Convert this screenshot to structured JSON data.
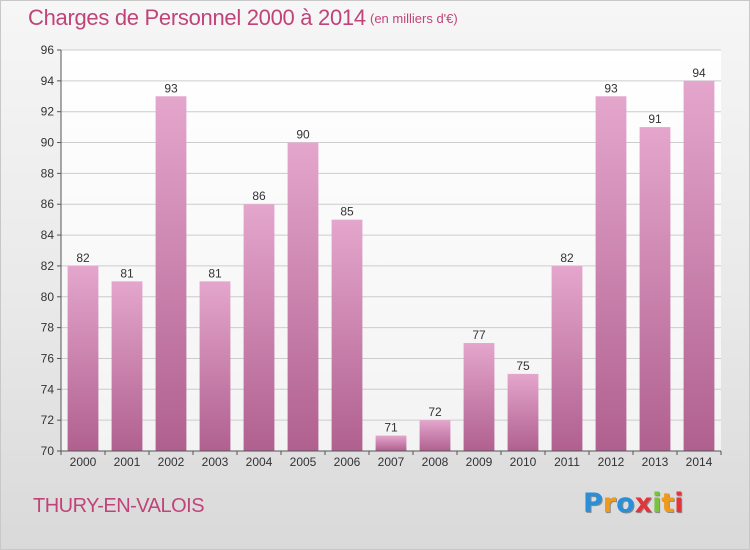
{
  "title": "Charges de Personnel 2000 à 2014",
  "subtitle": "(en milliers d'€)",
  "place": "THURY-EN-VALOIS",
  "logo": {
    "letters": [
      "P",
      "r",
      "o",
      "x",
      "i",
      "t",
      "i"
    ],
    "colors": [
      "#2a8fd6",
      "#f09a1a",
      "#2a8fd6",
      "#e0353a",
      "#7cc242",
      "#f09a1a",
      "#e0353a"
    ]
  },
  "colors": {
    "bar_top": "#e4a6cc",
    "bar_bottom": "#b0608f",
    "grid": "#cccccc",
    "title": "#c0447a"
  },
  "chart_data": {
    "type": "bar",
    "title": "Charges de Personnel 2000 à 2014",
    "subtitle": "(en milliers d'€)",
    "categories": [
      "2000",
      "2001",
      "2002",
      "2003",
      "2004",
      "2005",
      "2006",
      "2007",
      "2008",
      "2009",
      "2010",
      "2011",
      "2012",
      "2013",
      "2014"
    ],
    "values": [
      82,
      81,
      93,
      81,
      86,
      90,
      85,
      71,
      72,
      77,
      75,
      82,
      93,
      91,
      94
    ],
    "ylim": [
      70,
      96
    ],
    "yticks": [
      70,
      72,
      74,
      76,
      78,
      80,
      82,
      84,
      86,
      88,
      90,
      92,
      94,
      96
    ],
    "grid": true,
    "data_labels": true
  }
}
